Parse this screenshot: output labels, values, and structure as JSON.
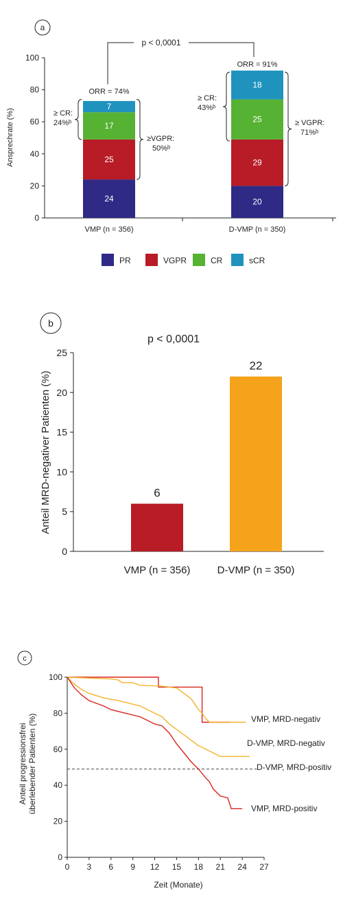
{
  "colors": {
    "PR": "#2e2a86",
    "VGPR": "#b71c27",
    "CR": "#56b233",
    "sCR": "#1f93be",
    "bar_vmp": "#b71c27",
    "bar_dvmp": "#f5a31a",
    "curve_vmp": "#d9241c",
    "curve_dvmp": "#f4b22a"
  },
  "chart_data": [
    {
      "panel": "a",
      "type": "bar",
      "stacked": true,
      "ylabel": "Ansprechrate (%)",
      "ylim": [
        0,
        100
      ],
      "yticks": [
        0,
        20,
        40,
        60,
        80,
        100
      ],
      "categories": [
        "VMP (n = 356)",
        "D-VMP (n = 350)"
      ],
      "series": [
        {
          "name": "PR",
          "values": [
            24,
            20
          ]
        },
        {
          "name": "VGPR",
          "values": [
            25,
            29
          ]
        },
        {
          "name": "CR",
          "values": [
            17,
            25
          ]
        },
        {
          "name": "sCR",
          "values": [
            7,
            18
          ]
        }
      ],
      "pvalue": "p < 0,0001",
      "orr": [
        "ORR = 74%",
        "ORR = 91%"
      ],
      "cr_note": [
        [
          "≥ CR:",
          "24%ᵇ"
        ],
        [
          "≥ CR:",
          "43%ᵇ"
        ]
      ],
      "vgpr_note": [
        [
          "≥VGPR:",
          "50%ᵇ"
        ],
        [
          "≥ VGPR:",
          "71%ᵇ"
        ]
      ],
      "legend": [
        "PR",
        "VGPR",
        "CR",
        "sCR"
      ]
    },
    {
      "panel": "b",
      "type": "bar",
      "ylabel": "Anteil MRD-negativer Patienten (%)",
      "ylim": [
        0,
        25
      ],
      "yticks": [
        0,
        5,
        10,
        15,
        20,
        25
      ],
      "categories": [
        "VMP (n = 356)",
        "D-VMP (n = 350)"
      ],
      "values": [
        6,
        22
      ],
      "pvalue": "p < 0,0001"
    },
    {
      "panel": "c",
      "type": "line",
      "xlabel": "Zeit (Monate)",
      "ylabel": [
        "Anteil progressionsfrei",
        "überlebender Patienten (%)"
      ],
      "xlim": [
        0,
        27
      ],
      "ylim": [
        0,
        100
      ],
      "xticks": [
        0,
        3,
        6,
        9,
        12,
        15,
        18,
        21,
        24,
        27
      ],
      "yticks": [
        0,
        20,
        40,
        60,
        80,
        100
      ],
      "reference_y": 49,
      "series": [
        {
          "name": "VMP, MRD-negativ",
          "color_key": "curve_vmp",
          "points": [
            [
              0,
              100
            ],
            [
              12.5,
              100
            ],
            [
              12.5,
              94.5
            ],
            [
              16,
              94.5
            ],
            [
              18.5,
              94.5
            ],
            [
              18.5,
              75
            ],
            [
              22.3,
              75
            ]
          ]
        },
        {
          "name": "D-VMP, MRD-negativ",
          "color_key": "curve_dvmp",
          "points": [
            [
              0,
              100
            ],
            [
              3,
              99.5
            ],
            [
              6,
              99
            ],
            [
              7,
              98.5
            ],
            [
              7.5,
              97
            ],
            [
              9,
              97
            ],
            [
              10,
              95.5
            ],
            [
              13,
              95
            ],
            [
              15,
              94
            ],
            [
              16,
              91
            ],
            [
              17,
              88
            ],
            [
              17.5,
              85
            ],
            [
              18,
              82
            ],
            [
              18.5,
              80
            ],
            [
              19,
              77
            ],
            [
              19.5,
              75
            ],
            [
              24.5,
              75
            ]
          ]
        },
        {
          "name": "D-VMP, MRD-positiv",
          "color_key": "curve_dvmp",
          "points": [
            [
              0,
              100
            ],
            [
              1,
              96
            ],
            [
              2,
              93
            ],
            [
              3,
              91
            ],
            [
              5,
              88.5
            ],
            [
              7,
              87
            ],
            [
              9,
              85
            ],
            [
              10,
              84
            ],
            [
              11,
              82
            ],
            [
              12,
              80
            ],
            [
              13,
              78
            ],
            [
              14,
              74
            ],
            [
              15,
              71
            ],
            [
              16,
              68
            ],
            [
              17,
              65
            ],
            [
              18,
              62
            ],
            [
              19,
              60
            ],
            [
              20,
              58
            ],
            [
              21,
              56
            ],
            [
              25,
              56
            ]
          ]
        },
        {
          "name": "VMP, MRD-positiv",
          "color_key": "curve_vmp",
          "points": [
            [
              0,
              100
            ],
            [
              1,
              94
            ],
            [
              2,
              90
            ],
            [
              3,
              87
            ],
            [
              5,
              84
            ],
            [
              6,
              82
            ],
            [
              8,
              80
            ],
            [
              10,
              78
            ],
            [
              11,
              76
            ],
            [
              12,
              74
            ],
            [
              13,
              73
            ],
            [
              14,
              69
            ],
            [
              15,
              63
            ],
            [
              16,
              58
            ],
            [
              17,
              53
            ],
            [
              18,
              49
            ],
            [
              19,
              44
            ],
            [
              19.5,
              42
            ],
            [
              20,
              38
            ],
            [
              21,
              34
            ],
            [
              22,
              33
            ],
            [
              22.5,
              27
            ],
            [
              24,
              27
            ]
          ]
        }
      ]
    }
  ]
}
